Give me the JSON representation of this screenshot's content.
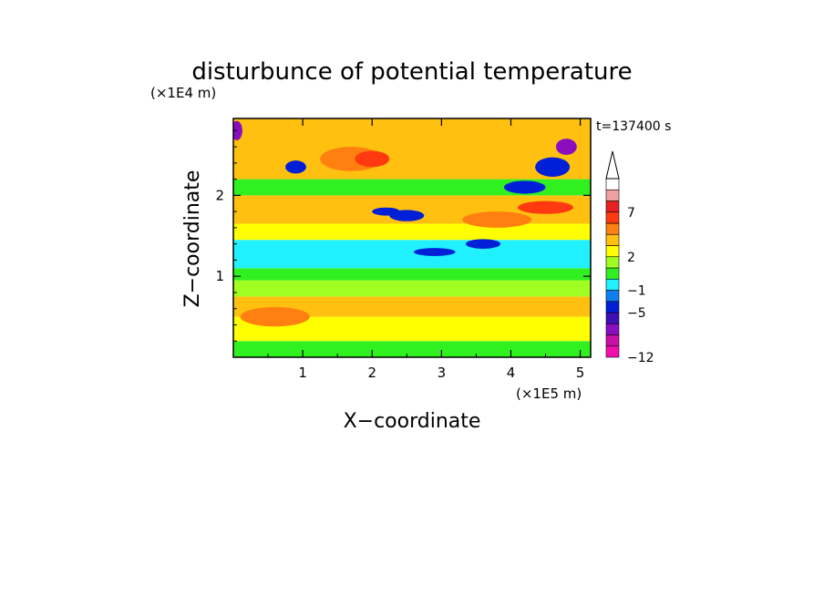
{
  "chart_data": {
    "type": "heatmap",
    "title": "disturbunce of potential temperature",
    "xlabel": "X−coordinate",
    "ylabel": "Z−coordinate",
    "x_unit": "(×1E5 m)",
    "y_unit": "(×1E4 m)",
    "time_label": "t=137400 s",
    "xlim": [
      0,
      5.15
    ],
    "ylim": [
      0,
      2.95
    ],
    "x_ticks": [
      1,
      2,
      3,
      4,
      5
    ],
    "x_tick_labels": [
      "1",
      "2",
      "3",
      "4",
      "5"
    ],
    "y_ticks": [
      1,
      2
    ],
    "y_tick_labels": [
      "1",
      "2"
    ],
    "colorbar": {
      "tick_labels": [
        {
          "level": -12,
          "label": "−12"
        },
        {
          "level": -5,
          "label": "−5"
        },
        {
          "level": -1,
          "label": "−1"
        },
        {
          "level": 2,
          "label": "2"
        },
        {
          "level": 7,
          "label": "7"
        }
      ],
      "extend": "max",
      "bins": [
        {
          "color": "#f20fb0"
        },
        {
          "color": "#c80fa8"
        },
        {
          "color": "#8a0ec0"
        },
        {
          "color": "#3c0fb4"
        },
        {
          "color": "#0020d8"
        },
        {
          "color": "#0f7ef0"
        },
        {
          "color": "#20f0ff"
        },
        {
          "color": "#30f020"
        },
        {
          "color": "#a0ff20"
        },
        {
          "color": "#ffff00"
        },
        {
          "color": "#ffc010"
        },
        {
          "color": "#ff8010"
        },
        {
          "color": "#ff3a10"
        },
        {
          "color": "#e82020"
        },
        {
          "color": "#f0a0a0"
        },
        {
          "color": "#ffffff"
        }
      ]
    },
    "field_layers": [
      {
        "z": [
          0.0,
          0.2
        ],
        "color": "#30f020"
      },
      {
        "z": [
          0.2,
          0.5
        ],
        "color": "#ffff00"
      },
      {
        "z": [
          0.5,
          0.75
        ],
        "color": "#ffc010"
      },
      {
        "z": [
          0.75,
          0.95
        ],
        "color": "#a0ff20"
      },
      {
        "z": [
          0.95,
          1.1
        ],
        "color": "#30f020"
      },
      {
        "z": [
          1.1,
          1.45
        ],
        "color": "#20f0ff"
      },
      {
        "z": [
          1.45,
          1.65
        ],
        "color": "#ffff00"
      },
      {
        "z": [
          1.65,
          2.0
        ],
        "color": "#ffc010"
      },
      {
        "z": [
          2.0,
          2.2
        ],
        "color": "#30f020"
      },
      {
        "z": [
          2.2,
          2.95
        ],
        "color": "#ffc010"
      }
    ],
    "features": [
      {
        "x": 1.7,
        "z": 2.45,
        "rx": 0.45,
        "rz": 0.15,
        "color": "#ff8010"
      },
      {
        "x": 2.0,
        "z": 2.45,
        "rx": 0.25,
        "rz": 0.1,
        "color": "#ff3a10"
      },
      {
        "x": 3.8,
        "z": 1.7,
        "rx": 0.5,
        "rz": 0.1,
        "color": "#ff8010"
      },
      {
        "x": 4.5,
        "z": 1.85,
        "rx": 0.4,
        "rz": 0.08,
        "color": "#ff3a10"
      },
      {
        "x": 0.6,
        "z": 0.5,
        "rx": 0.5,
        "rz": 0.12,
        "color": "#ff8010"
      },
      {
        "x": 2.2,
        "z": 1.8,
        "rx": 0.2,
        "rz": 0.05,
        "color": "#0020d8"
      },
      {
        "x": 2.5,
        "z": 1.75,
        "rx": 0.25,
        "rz": 0.07,
        "color": "#0020d8"
      },
      {
        "x": 2.9,
        "z": 1.3,
        "rx": 0.3,
        "rz": 0.05,
        "color": "#0020d8"
      },
      {
        "x": 3.6,
        "z": 1.4,
        "rx": 0.25,
        "rz": 0.06,
        "color": "#0020d8"
      },
      {
        "x": 4.2,
        "z": 2.1,
        "rx": 0.3,
        "rz": 0.08,
        "color": "#0020d8"
      },
      {
        "x": 4.6,
        "z": 2.35,
        "rx": 0.25,
        "rz": 0.12,
        "color": "#0020d8"
      },
      {
        "x": 4.8,
        "z": 2.6,
        "rx": 0.15,
        "rz": 0.1,
        "color": "#8a0ec0"
      },
      {
        "x": 0.05,
        "z": 2.8,
        "rx": 0.08,
        "rz": 0.12,
        "color": "#8a0ec0"
      },
      {
        "x": 0.9,
        "z": 2.35,
        "rx": 0.15,
        "rz": 0.08,
        "color": "#0020d8"
      }
    ]
  }
}
